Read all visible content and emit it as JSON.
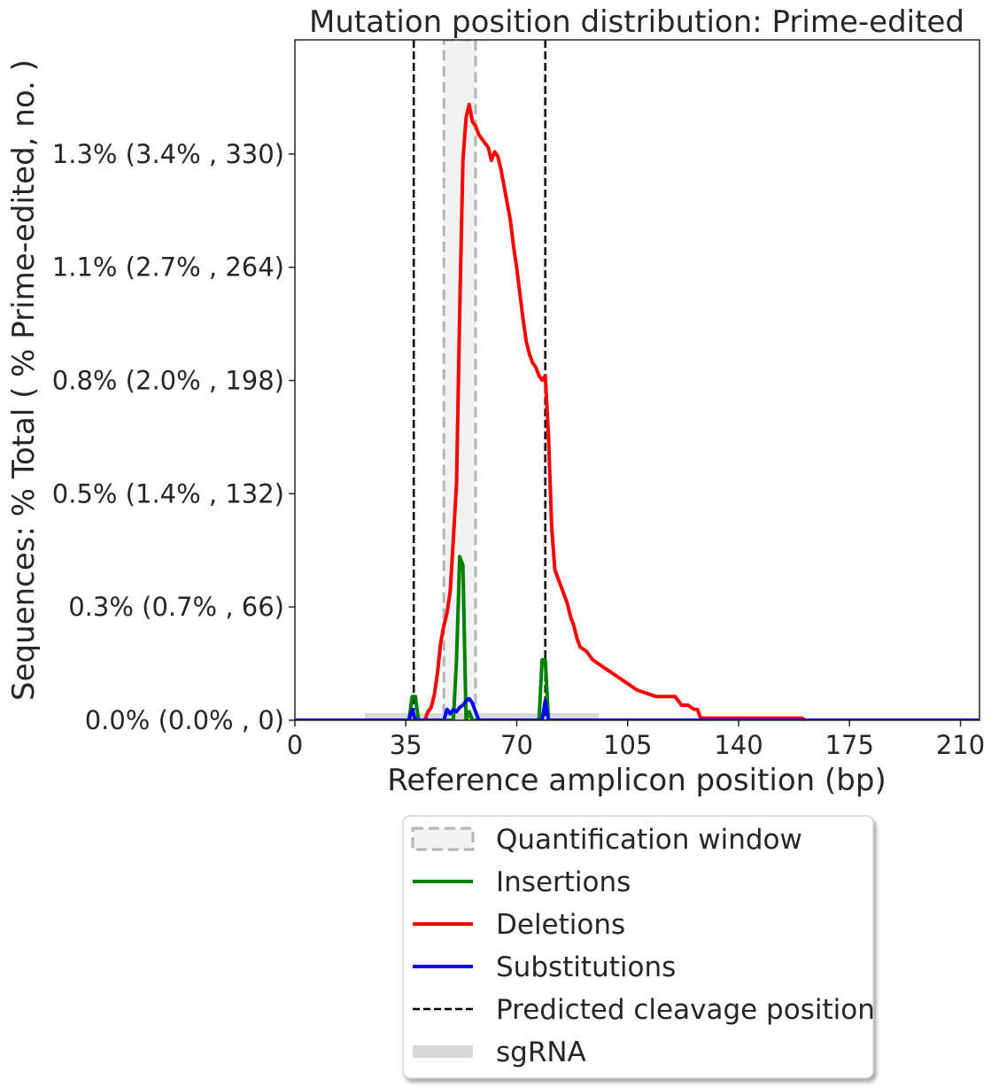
{
  "chart_data": {
    "type": "line",
    "title": "Mutation position distribution: Prime-edited",
    "xlabel": "Reference amplicon position (bp)",
    "ylabel": "Sequences: % Total ( % Prime-edited, no. )",
    "xlim": [
      0,
      216
    ],
    "ylim": [
      0,
      1.58
    ],
    "x_ticks": [
      0,
      35,
      70,
      105,
      140,
      175,
      210
    ],
    "x_tick_labels": [
      "0",
      "35",
      "70",
      "105",
      "140",
      "175",
      "210"
    ],
    "y_ticks": [
      0.0,
      0.263,
      0.526,
      0.789,
      1.052,
      1.315
    ],
    "y_tick_labels": [
      "0.0% (0.0% , 0)",
      "0.3% (0.7% , 66)",
      "0.5% (1.4% , 132)",
      "0.8% (2.0% , 198)",
      "1.1% (2.7% , 264)",
      "1.3% (3.4% , 330)"
    ],
    "quantification_windows": [
      [
        47,
        57
      ]
    ],
    "cleavage_positions": [
      37.5,
      79
    ],
    "sgrna_ranges": [
      [
        22,
        36
      ],
      [
        38,
        96
      ]
    ],
    "legend_placement": "below",
    "legend": [
      {
        "label": "Quantification window",
        "kind": "window"
      },
      {
        "label": "Insertions",
        "kind": "line",
        "color": "#008000"
      },
      {
        "label": "Deletions",
        "kind": "line",
        "color": "#ff0000"
      },
      {
        "label": "Substitutions",
        "kind": "line",
        "color": "#0000ff"
      },
      {
        "label": "Predicted cleavage position",
        "kind": "dashed"
      },
      {
        "label": "sgRNA",
        "kind": "band"
      }
    ],
    "colors": {
      "insertions": "#008000",
      "deletions": "#ff0000",
      "substitutions": "#0000ff",
      "cleavage": "#000000",
      "window_fill": "#f2f2f2",
      "window_edge": "#b3b3b3",
      "sgrna": "#d9d9d9"
    },
    "series": [
      {
        "name": "Insertions",
        "color": "#008000",
        "points": [
          [
            0,
            0
          ],
          [
            36,
            0
          ],
          [
            37,
            0.055
          ],
          [
            38,
            0.055
          ],
          [
            39,
            0
          ],
          [
            50,
            0
          ],
          [
            51,
            0.14
          ],
          [
            52,
            0.38
          ],
          [
            53,
            0.36
          ],
          [
            54,
            0
          ],
          [
            55,
            0.02
          ],
          [
            56,
            0
          ],
          [
            77,
            0
          ],
          [
            78,
            0.14
          ],
          [
            79,
            0.14
          ],
          [
            80,
            0
          ],
          [
            216,
            0
          ]
        ]
      },
      {
        "name": "Deletions",
        "color": "#ff0000",
        "points": [
          [
            0,
            0
          ],
          [
            41,
            0
          ],
          [
            42,
            0.02
          ],
          [
            43,
            0.03
          ],
          [
            44,
            0.06
          ],
          [
            45,
            0.11
          ],
          [
            46,
            0.18
          ],
          [
            47,
            0.22
          ],
          [
            48,
            0.25
          ],
          [
            49,
            0.3
          ],
          [
            50,
            0.42
          ],
          [
            51,
            0.55
          ],
          [
            52,
            0.95
          ],
          [
            53,
            1.3
          ],
          [
            54,
            1.4
          ],
          [
            55,
            1.43
          ],
          [
            56,
            1.39
          ],
          [
            57,
            1.38
          ],
          [
            58,
            1.36
          ],
          [
            59,
            1.35
          ],
          [
            60,
            1.34
          ],
          [
            61,
            1.33
          ],
          [
            62,
            1.3
          ],
          [
            63,
            1.32
          ],
          [
            64,
            1.31
          ],
          [
            65,
            1.28
          ],
          [
            66,
            1.24
          ],
          [
            67,
            1.2
          ],
          [
            68,
            1.16
          ],
          [
            69,
            1.1
          ],
          [
            70,
            1.05
          ],
          [
            71,
            0.99
          ],
          [
            72,
            0.93
          ],
          [
            73,
            0.88
          ],
          [
            74,
            0.85
          ],
          [
            75,
            0.83
          ],
          [
            76,
            0.82
          ],
          [
            77,
            0.8
          ],
          [
            78,
            0.79
          ],
          [
            79,
            0.8
          ],
          [
            80,
            0.66
          ],
          [
            81,
            0.45
          ],
          [
            82,
            0.35
          ],
          [
            83,
            0.33
          ],
          [
            84,
            0.31
          ],
          [
            85,
            0.29
          ],
          [
            86,
            0.27
          ],
          [
            87,
            0.24
          ],
          [
            88,
            0.22
          ],
          [
            89,
            0.19
          ],
          [
            90,
            0.17
          ],
          [
            92,
            0.16
          ],
          [
            94,
            0.14
          ],
          [
            96,
            0.13
          ],
          [
            98,
            0.12
          ],
          [
            100,
            0.11
          ],
          [
            102,
            0.1
          ],
          [
            104,
            0.09
          ],
          [
            106,
            0.08
          ],
          [
            108,
            0.07
          ],
          [
            110,
            0.065
          ],
          [
            112,
            0.06
          ],
          [
            114,
            0.055
          ],
          [
            116,
            0.055
          ],
          [
            118,
            0.055
          ],
          [
            120,
            0.055
          ],
          [
            122,
            0.035
          ],
          [
            124,
            0.035
          ],
          [
            126,
            0.025
          ],
          [
            127,
            0.025
          ],
          [
            128,
            0.005
          ],
          [
            160,
            0.005
          ],
          [
            161,
            0
          ],
          [
            216,
            0
          ]
        ]
      },
      {
        "name": "Substitutions",
        "color": "#0000ff",
        "points": [
          [
            0,
            0
          ],
          [
            36,
            0
          ],
          [
            37,
            0.025
          ],
          [
            38,
            0
          ],
          [
            47,
            0
          ],
          [
            48,
            0.025
          ],
          [
            49,
            0.015
          ],
          [
            50,
            0.025
          ],
          [
            51,
            0.02
          ],
          [
            52,
            0.03
          ],
          [
            53,
            0.035
          ],
          [
            54,
            0.045
          ],
          [
            55,
            0.05
          ],
          [
            56,
            0.04
          ],
          [
            57,
            0.02
          ],
          [
            58,
            0
          ],
          [
            78,
            0
          ],
          [
            79,
            0.045
          ],
          [
            80,
            0
          ],
          [
            216,
            0
          ]
        ]
      }
    ]
  }
}
